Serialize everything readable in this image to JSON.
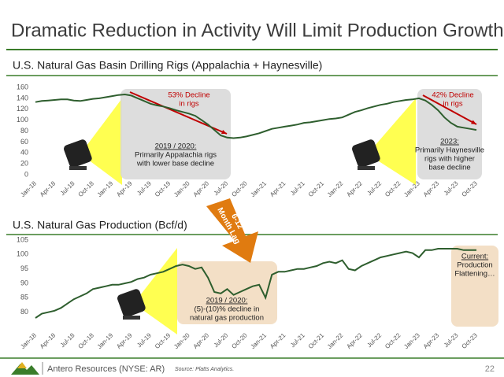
{
  "title": "Dramatic Reduction in Activity Will Limit Production Growth",
  "chart_data": [
    {
      "type": "line",
      "title": "U.S. Natural Gas Basin Drilling Rigs (Appalachia + Haynesville)",
      "categories": [
        "Jan-18",
        null,
        null,
        "Apr-18",
        null,
        null,
        "Jul-18",
        null,
        null,
        "Oct-18",
        null,
        null,
        "Jan-19",
        null,
        null,
        "Apr-19",
        null,
        null,
        "Jul-19",
        null,
        null,
        "Oct-19",
        null,
        null,
        "Jan-20",
        null,
        null,
        "Apr-20",
        null,
        null,
        "Jul-20",
        null,
        null,
        "Oct-20",
        null,
        null,
        "Jan-21",
        null,
        null,
        "Apr-21",
        null,
        null,
        "Jul-21",
        null,
        null,
        "Oct-21",
        null,
        null,
        "Jan-22",
        null,
        null,
        "Apr-22",
        null,
        null,
        "Jul-22",
        null,
        null,
        "Oct-22",
        null,
        null,
        "Jan-23",
        null,
        null,
        "Apr-23",
        null,
        null,
        "Jul-23",
        null,
        null,
        "Oct-23"
      ],
      "values": [
        133,
        135,
        136,
        137,
        138,
        138,
        136,
        135,
        137,
        139,
        140,
        142,
        144,
        146,
        147,
        145,
        140,
        135,
        130,
        127,
        125,
        122,
        118,
        115,
        112,
        108,
        100,
        92,
        82,
        72,
        68,
        67,
        68,
        70,
        73,
        76,
        80,
        84,
        86,
        88,
        90,
        92,
        95,
        96,
        98,
        100,
        102,
        103,
        105,
        110,
        115,
        118,
        122,
        125,
        128,
        130,
        133,
        135,
        137,
        138,
        140,
        136,
        128,
        118,
        105,
        95,
        88,
        86,
        84,
        82
      ],
      "color": "#2e5e2e",
      "ylim": [
        0,
        160
      ],
      "yticks": [
        0,
        20,
        40,
        60,
        80,
        100,
        120,
        140,
        160
      ],
      "annotations": [
        [
          "53% Decline",
          "in rigs"
        ],
        [
          "2019 / 2020:",
          "Primarily Appalachia rigs",
          "with lower base decline"
        ],
        [
          "42% Decline",
          "in rigs"
        ],
        [
          "2023:",
          "Primarily Haynesville",
          "rigs with higher",
          "base decline"
        ]
      ]
    },
    {
      "type": "line",
      "title": "U.S. Natural Gas Production (Bcf/d)",
      "categories": [
        "Jan-18",
        null,
        null,
        "Apr-18",
        null,
        null,
        "Jul-18",
        null,
        null,
        "Oct-18",
        null,
        null,
        "Jan-19",
        null,
        null,
        "Apr-19",
        null,
        null,
        "Jul-19",
        null,
        null,
        "Oct-19",
        null,
        null,
        "Jan-20",
        null,
        null,
        "Apr-20",
        null,
        null,
        "Jul-20",
        null,
        null,
        "Oct-20",
        null,
        null,
        "Jan-21",
        null,
        null,
        "Apr-21",
        null,
        null,
        "Jul-21",
        null,
        null,
        "Oct-21",
        null,
        null,
        "Jan-22",
        null,
        null,
        "Apr-22",
        null,
        null,
        "Jul-22",
        null,
        null,
        "Oct-22",
        null,
        null,
        "Jan-23",
        null,
        null,
        "Apr-23",
        null,
        null,
        "Jul-23",
        null,
        null,
        "Oct-23"
      ],
      "values": [
        78,
        79.5,
        80,
        80.5,
        81.5,
        83,
        84.5,
        85.5,
        86.5,
        88,
        88.5,
        89,
        89.5,
        89.5,
        90,
        90.5,
        91.5,
        92,
        93,
        93.5,
        94,
        95,
        96,
        96.5,
        96,
        95,
        95.5,
        92,
        87,
        86.5,
        88,
        86,
        87,
        88,
        89,
        89.5,
        85,
        93,
        94,
        94,
        94.5,
        95,
        95,
        95.5,
        96,
        97,
        97.5,
        97,
        98,
        95,
        94.5,
        96,
        97,
        98,
        99,
        99.5,
        100,
        100.5,
        101,
        100.5,
        99,
        101.5,
        101.5,
        102,
        102,
        102,
        102,
        101.5,
        101.5,
        101.5
      ],
      "color": "#2e5e2e",
      "ylim": [
        75,
        105
      ],
      "yticks": [
        80,
        85,
        90,
        95,
        100,
        105
      ],
      "annotations": [
        [
          "2019 / 2020:",
          "(5)-(10)% decline in",
          "natural gas production"
        ],
        [
          "Current:",
          "Production",
          "Flattening…"
        ]
      ]
    }
  ],
  "lag_label": [
    "6-12",
    "Month Lag"
  ],
  "footer": {
    "company": "Antero Resources (NYSE: AR)",
    "source": "Source: Platts Analytics.",
    "page": "22"
  }
}
